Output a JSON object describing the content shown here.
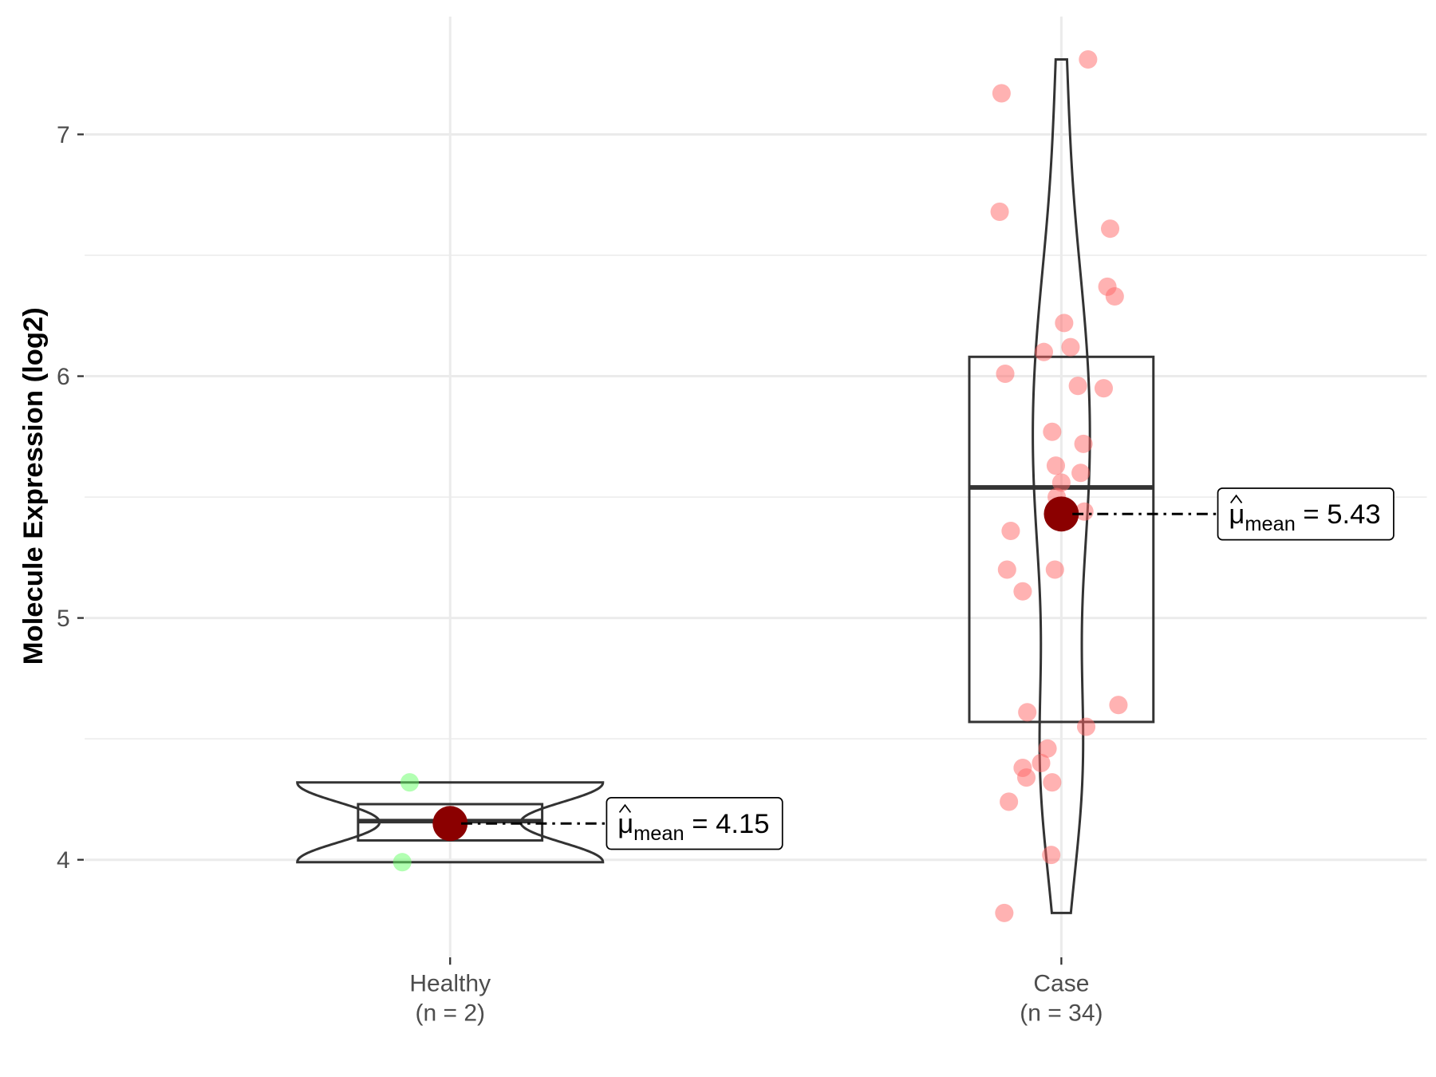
{
  "chart_data": {
    "type": "violin-box-scatter",
    "ylabel": "Molecule Expression (log2)",
    "xlabel": "",
    "ylim": [
      3.6,
      7.45
    ],
    "yticks": [
      4,
      5,
      6,
      7
    ],
    "ytick_labels": [
      "4",
      "5",
      "6",
      "7"
    ],
    "grid": true,
    "groups": [
      {
        "name": "Healthy",
        "n_label": "(n = 2)",
        "color": "#66ff66",
        "points": [
          4.32,
          3.99
        ],
        "box": {
          "q1": 4.08,
          "median": 4.16,
          "q3": 4.23
        },
        "mean": 4.15,
        "mean_label": {
          "sub": "mean",
          "eq": "= 4.15",
          "mu": "μ"
        }
      },
      {
        "name": "Case",
        "n_label": "(n = 34)",
        "color": "#ff6666",
        "points": [
          7.31,
          7.17,
          6.68,
          6.61,
          6.37,
          6.33,
          6.22,
          6.1,
          6.12,
          6.01,
          5.96,
          5.95,
          5.77,
          5.72,
          5.63,
          5.6,
          5.56,
          5.5,
          5.44,
          5.36,
          5.2,
          5.2,
          5.11,
          4.61,
          4.64,
          4.55,
          4.46,
          4.4,
          4.38,
          4.34,
          4.32,
          4.24,
          4.02,
          3.78
        ],
        "box": {
          "q1": 4.57,
          "median": 5.54,
          "q3": 6.08
        },
        "mean": 5.43,
        "mean_label": {
          "sub": "mean",
          "eq": "= 5.43",
          "mu": "μ"
        }
      }
    ],
    "mean_point_color": "#8b0000"
  }
}
